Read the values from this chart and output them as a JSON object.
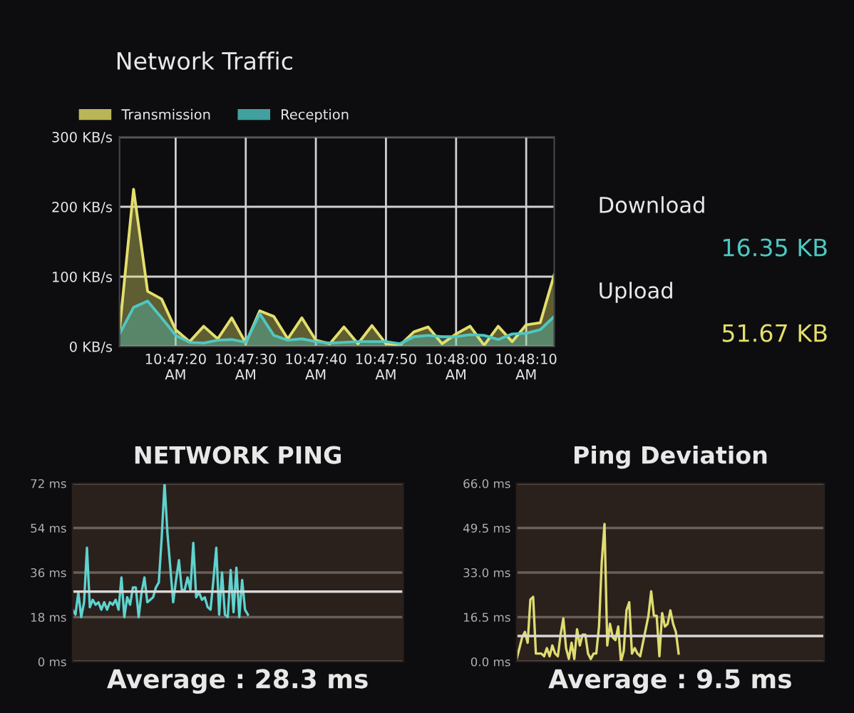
{
  "chart_data": [
    {
      "type": "area",
      "title": "Network Traffic",
      "legend": "top left",
      "grid": true,
      "x": [
        10.786667,
        10.787222,
        10.787778,
        10.788333,
        10.788889,
        10.789444,
        10.79,
        10.790556,
        10.791111,
        10.791667,
        10.792222,
        10.792778,
        10.793333,
        10.793889,
        10.794444,
        10.795,
        10.795556,
        10.796111,
        10.796667,
        10.797222,
        10.797778,
        10.798333,
        10.798889,
        10.799444,
        10.8,
        10.800556,
        10.801111,
        10.801667,
        10.802222,
        10.802778,
        10.803333,
        10.803889
      ],
      "xlim": [
        10.786667,
        10.803889
      ],
      "xticks": [
        {
          "value": 10.788889,
          "label": "10:47:20\nAM"
        },
        {
          "value": 10.791667,
          "label": "10:47:30\nAM"
        },
        {
          "value": 10.794444,
          "label": "10:47:40\nAM"
        },
        {
          "value": 10.797222,
          "label": "10:47:50\nAM"
        },
        {
          "value": 10.8,
          "label": "10:48:00\nAM"
        },
        {
          "value": 10.802778,
          "label": "10:48:10\nAM"
        }
      ],
      "ylim": [
        0,
        300
      ],
      "yticks": [
        {
          "value": 0,
          "label": "0 KB/s"
        },
        {
          "value": 100,
          "label": "100 KB/s"
        },
        {
          "value": 200,
          "label": "200 KB/s"
        },
        {
          "value": 300,
          "label": "300 KB/s"
        }
      ],
      "series": [
        {
          "name": "Transmission",
          "color": "#e4df6c",
          "values": [
            24,
            225,
            79,
            68,
            24,
            7,
            29,
            11,
            41,
            5,
            51,
            43,
            11,
            41,
            9,
            4,
            28,
            4,
            30,
            4,
            2,
            21,
            28,
            4,
            18,
            29,
            2,
            29,
            7,
            31,
            34,
            103
          ]
        },
        {
          "name": "Reception",
          "color": "#4fc7c2",
          "values": [
            18,
            56,
            65,
            41,
            16,
            6,
            5,
            9,
            10,
            6,
            47,
            16,
            9,
            11,
            7,
            5,
            6,
            7,
            7,
            7,
            4,
            14,
            16,
            14,
            14,
            17,
            16,
            10,
            18,
            19,
            24,
            43
          ]
        }
      ]
    },
    {
      "type": "other",
      "annotations": [
        "Download",
        "16.35 KB",
        "Upload",
        "51.67 KB"
      ]
    },
    {
      "type": "line",
      "title": "NETWORK PING",
      "grid": "y",
      "tick_labels": "y",
      "categories": [
        null,
        null,
        null,
        null,
        null,
        null,
        null,
        null,
        null,
        null,
        null,
        null,
        null,
        null,
        null,
        null,
        null,
        null,
        null,
        null,
        null,
        null,
        null,
        null,
        null,
        null,
        null,
        null,
        null,
        null,
        null,
        null,
        null,
        null,
        null,
        null,
        null,
        null,
        null,
        null,
        null,
        null,
        null,
        null,
        null,
        null,
        null,
        null,
        null,
        null,
        null,
        null,
        null,
        null,
        null,
        null,
        null,
        null,
        null,
        null,
        null,
        null,
        null,
        null,
        null,
        null,
        null,
        null,
        null,
        null,
        null,
        null,
        null,
        null,
        null,
        null,
        null,
        null,
        null,
        null,
        null,
        null,
        null,
        null,
        null,
        null,
        null,
        null,
        null,
        null,
        null,
        null,
        null,
        null,
        null,
        null,
        null,
        null,
        null,
        null,
        null,
        null,
        null,
        null,
        null,
        null,
        null,
        null,
        null,
        null,
        null,
        null,
        null,
        null,
        null,
        null
      ],
      "ylim": [
        0,
        72
      ],
      "yticks": [
        {
          "value": 0,
          "label": "0 ms"
        },
        {
          "value": 18,
          "label": "18 ms"
        },
        {
          "value": 36,
          "label": "36 ms"
        },
        {
          "value": 54,
          "label": "54 ms"
        },
        {
          "value": 72,
          "label": "72 ms"
        }
      ],
      "ref_lines": [
        {
          "axis": "y",
          "value": 28.3,
          "label": "Average : 28.3 ms",
          "color": "#d8d8d8"
        }
      ],
      "series": [
        {
          "color": "#5fd3cf",
          "values": [
            21,
            19,
            28,
            18,
            24,
            46,
            22,
            25,
            23,
            24,
            21,
            24,
            21,
            24,
            23,
            25,
            21,
            34,
            18,
            26,
            23,
            30,
            30,
            18,
            28,
            34,
            24,
            25,
            26,
            30,
            32,
            50,
            72,
            52,
            38,
            24,
            33,
            41,
            29,
            29,
            34,
            29,
            48,
            26,
            28,
            25,
            26,
            22,
            21,
            33,
            46,
            19,
            36,
            19,
            18,
            37,
            20,
            38,
            18,
            33,
            21,
            19,
            null,
            null,
            null,
            null,
            null,
            null,
            null,
            null,
            null,
            null,
            null,
            null,
            null,
            null,
            null,
            null,
            null,
            null,
            null,
            null,
            null,
            null,
            null,
            null,
            null,
            null,
            null,
            null,
            null,
            null,
            null,
            null,
            null,
            null,
            null,
            null,
            null,
            null,
            null,
            null,
            null,
            null,
            null,
            null,
            null,
            null,
            null,
            null,
            null,
            null,
            null,
            null,
            null,
            null
          ]
        }
      ]
    },
    {
      "type": "line",
      "title": "Ping Deviation",
      "grid": "y",
      "tick_labels": "y",
      "categories": [
        null,
        null,
        null,
        null,
        null,
        null,
        null,
        null,
        null,
        null,
        null,
        null,
        null,
        null,
        null,
        null,
        null,
        null,
        null,
        null,
        null,
        null,
        null,
        null,
        null,
        null,
        null,
        null,
        null,
        null,
        null,
        null,
        null,
        null,
        null,
        null,
        null,
        null,
        null,
        null,
        null,
        null,
        null,
        null,
        null,
        null,
        null,
        null,
        null,
        null,
        null,
        null,
        null,
        null,
        null,
        null,
        null,
        null,
        null,
        null,
        null,
        null,
        null,
        null,
        null,
        null,
        null,
        null,
        null,
        null,
        null,
        null,
        null,
        null,
        null,
        null,
        null,
        null,
        null,
        null,
        null,
        null,
        null,
        null,
        null,
        null,
        null,
        null,
        null,
        null,
        null,
        null,
        null,
        null,
        null,
        null,
        null,
        null,
        null,
        null,
        null,
        null,
        null,
        null,
        null,
        null,
        null,
        null,
        null,
        null,
        null,
        null,
        null
      ],
      "ylim": [
        0,
        66
      ],
      "yticks": [
        {
          "value": 0,
          "label": "0.0 ms"
        },
        {
          "value": 16.5,
          "label": "16.5 ms"
        },
        {
          "value": 33,
          "label": "33.0 ms"
        },
        {
          "value": 49.5,
          "label": "49.5 ms"
        },
        {
          "value": 66,
          "label": "66.0 ms"
        }
      ],
      "ref_lines": [
        {
          "axis": "y",
          "value": 9.5,
          "label": "Average : 9.5 ms",
          "color": "#d8d8d8"
        }
      ],
      "series": [
        {
          "color": "#e0dc70",
          "values": [
            1,
            5,
            9,
            11,
            7,
            23,
            24,
            3,
            3,
            3,
            2,
            5,
            2,
            6,
            3,
            2,
            10,
            16,
            5,
            1,
            7,
            1,
            12,
            6,
            10,
            10,
            3,
            1,
            3,
            3,
            13,
            37,
            51,
            6,
            14,
            9,
            8,
            13,
            0,
            4,
            19,
            22,
            3,
            5,
            3,
            2,
            7,
            12,
            17,
            26,
            17,
            17,
            2,
            18,
            13,
            14,
            19,
            14,
            11,
            3,
            null,
            null,
            null,
            null,
            null,
            null,
            null,
            null,
            null,
            null,
            null,
            null,
            null,
            null,
            null,
            null,
            null,
            null,
            null,
            null,
            null,
            null,
            null,
            null,
            null,
            null,
            null,
            null,
            null,
            null,
            null,
            null,
            null,
            null,
            null,
            null,
            null,
            null,
            null,
            null,
            null,
            null,
            null,
            null,
            null,
            null,
            null,
            null,
            null,
            null,
            null,
            null,
            null
          ]
        }
      ]
    }
  ]
}
